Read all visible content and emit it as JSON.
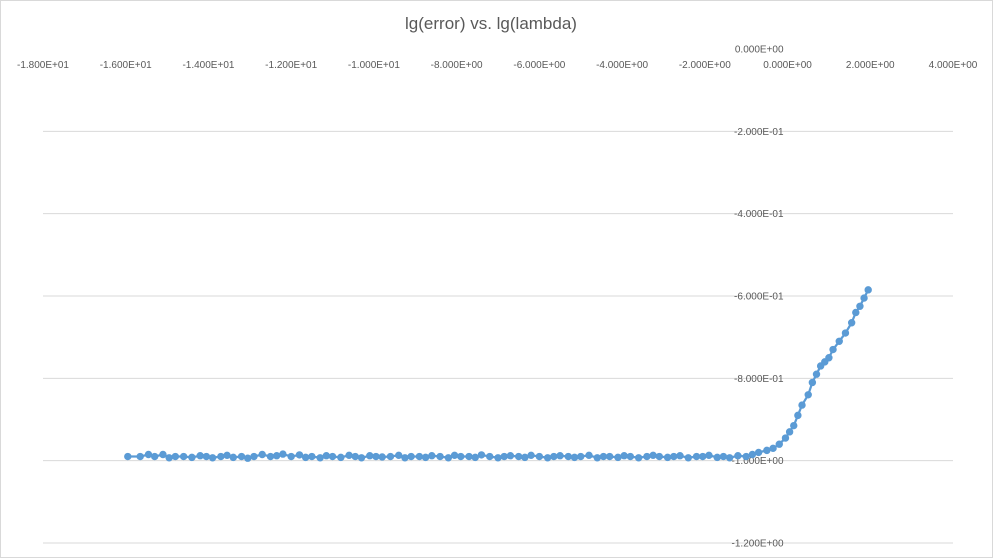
{
  "chart_data": {
    "type": "scatter",
    "title": "lg(error) vs. lg(lambda)",
    "xlabel": "",
    "ylabel": "",
    "xlim": [
      -18,
      4
    ],
    "ylim": [
      -1.2,
      0
    ],
    "x_ticks": [
      -18,
      -16,
      -14,
      -12,
      -10,
      -8,
      -6,
      -4,
      -2,
      0,
      2,
      4
    ],
    "x_tick_labels": [
      "-1.800E+01",
      "-1.600E+01",
      "-1.400E+01",
      "-1.200E+01",
      "-1.000E+01",
      "-8.000E+00",
      "-6.000E+00",
      "-4.000E+00",
      "-2.000E+00",
      "0.000E+00",
      "2.000E+00",
      "4.000E+00"
    ],
    "y_ticks": [
      0,
      -0.2,
      -0.4,
      -0.6,
      -0.8,
      -1.0,
      -1.2
    ],
    "y_tick_labels": [
      "0.000E+00",
      "-2.000E-01",
      "-4.000E-01",
      "-6.000E-01",
      "-8.000E-01",
      "-1.000E+00",
      "-1.200E+00"
    ],
    "grid": true,
    "legend": "none",
    "series_color": "#5b9bd5",
    "series": [
      {
        "x": [
          -15.95,
          -15.65,
          -15.45,
          -15.3,
          -15.1,
          -14.95,
          -14.8,
          -14.6,
          -14.4,
          -14.2,
          -14.05,
          -13.9,
          -13.7,
          -13.55,
          -13.4,
          -13.2,
          -13.05,
          -12.9,
          -12.7,
          -12.5,
          -12.35,
          -12.2,
          -12.0,
          -11.8,
          -11.65,
          -11.5,
          -11.3,
          -11.15,
          -11.0,
          -10.8,
          -10.6,
          -10.45,
          -10.3,
          -10.1,
          -9.95,
          -9.8,
          -9.6,
          -9.4,
          -9.25,
          -9.1,
          -8.9,
          -8.75,
          -8.6,
          -8.4,
          -8.2,
          -8.05,
          -7.9,
          -7.7,
          -7.55,
          -7.4,
          -7.2,
          -7.0,
          -6.85,
          -6.7,
          -6.5,
          -6.35,
          -6.2,
          -6.0,
          -5.8,
          -5.65,
          -5.5,
          -5.3,
          -5.15,
          -5.0,
          -4.8,
          -4.6,
          -4.45,
          -4.3,
          -4.1,
          -3.95,
          -3.8,
          -3.6,
          -3.4,
          -3.25,
          -3.1,
          -2.9,
          -2.75,
          -2.6,
          -2.4,
          -2.2,
          -2.05,
          -1.9,
          -1.7,
          -1.55,
          -1.4,
          -1.2,
          -1.0,
          -0.85,
          -0.7,
          -0.5,
          -0.35,
          -0.2,
          -0.05,
          0.05,
          0.15,
          0.25,
          0.35,
          0.5,
          0.6,
          0.7,
          0.8,
          0.9,
          1.0,
          1.1,
          1.25,
          1.4,
          1.55,
          1.65,
          1.75,
          1.85,
          1.95
        ],
        "y": [
          -0.99,
          -0.99,
          -0.985,
          -0.99,
          -0.985,
          -0.993,
          -0.99,
          -0.99,
          -0.992,
          -0.988,
          -0.99,
          -0.993,
          -0.99,
          -0.987,
          -0.992,
          -0.99,
          -0.994,
          -0.99,
          -0.985,
          -0.99,
          -0.988,
          -0.984,
          -0.99,
          -0.986,
          -0.992,
          -0.99,
          -0.993,
          -0.988,
          -0.99,
          -0.992,
          -0.987,
          -0.99,
          -0.993,
          -0.988,
          -0.99,
          -0.991,
          -0.99,
          -0.987,
          -0.993,
          -0.99,
          -0.99,
          -0.992,
          -0.988,
          -0.99,
          -0.993,
          -0.987,
          -0.99,
          -0.99,
          -0.992,
          -0.986,
          -0.99,
          -0.993,
          -0.99,
          -0.988,
          -0.99,
          -0.992,
          -0.987,
          -0.99,
          -0.993,
          -0.99,
          -0.988,
          -0.99,
          -0.992,
          -0.99,
          -0.987,
          -0.993,
          -0.99,
          -0.99,
          -0.992,
          -0.988,
          -0.99,
          -0.993,
          -0.99,
          -0.987,
          -0.99,
          -0.992,
          -0.99,
          -0.988,
          -0.993,
          -0.99,
          -0.99,
          -0.987,
          -0.992,
          -0.99,
          -0.993,
          -0.988,
          -0.99,
          -0.985,
          -0.98,
          -0.975,
          -0.97,
          -0.96,
          -0.945,
          -0.93,
          -0.915,
          -0.89,
          -0.865,
          -0.84,
          -0.81,
          -0.79,
          -0.77,
          -0.76,
          -0.75,
          -0.73,
          -0.71,
          -0.69,
          -0.665,
          -0.64,
          -0.625,
          -0.605,
          -0.585
        ]
      }
    ]
  }
}
